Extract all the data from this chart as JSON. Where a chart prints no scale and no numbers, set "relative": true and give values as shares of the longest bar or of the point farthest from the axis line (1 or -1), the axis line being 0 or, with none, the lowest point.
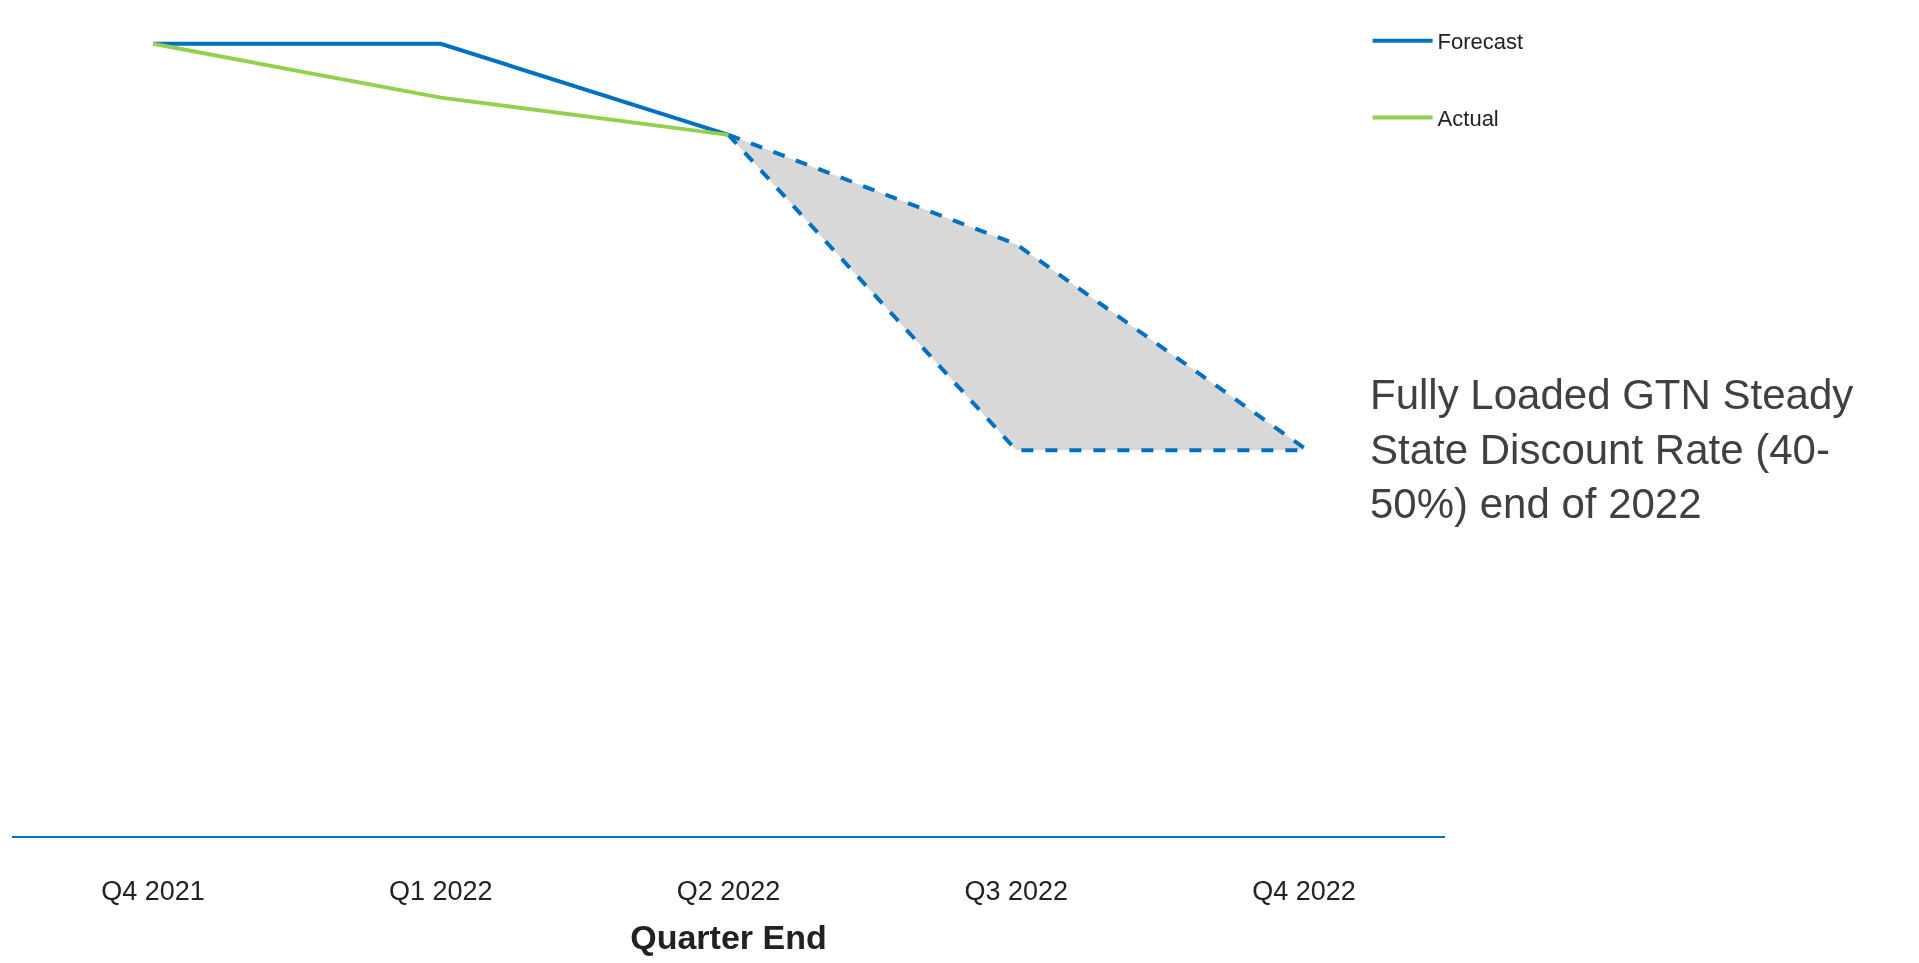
{
  "chart_data": {
    "type": "line",
    "relative": true,
    "xlabel": "Quarter End",
    "categories": [
      "Q4 2021",
      "Q1 2022",
      "Q2 2022",
      "Q3 2022",
      "Q4 2022"
    ],
    "series": [
      {
        "name": "Forecast",
        "color": "#0070c0",
        "values": [
          1,
          1,
          0.885,
          null,
          null
        ]
      },
      {
        "name": "Actual",
        "color": "#92d050",
        "values": [
          1,
          0.932,
          0.885,
          null,
          null
        ]
      },
      {
        "color": "#0070c0",
        "line_style": "dashed",
        "values": [
          null,
          null,
          0.885,
          0.747,
          0.49
        ]
      },
      {
        "color": "#0070c0",
        "line_style": "dashed",
        "values": [
          null,
          null,
          0.885,
          0.487,
          0.487
        ]
      }
    ],
    "annotations": [
      "Fully Loaded GTN Steady State Discount Rate (40-50%) end of 2022"
    ],
    "grid": false,
    "legend": "top right",
    "marker": "none",
    "tick_labels": "x"
  }
}
